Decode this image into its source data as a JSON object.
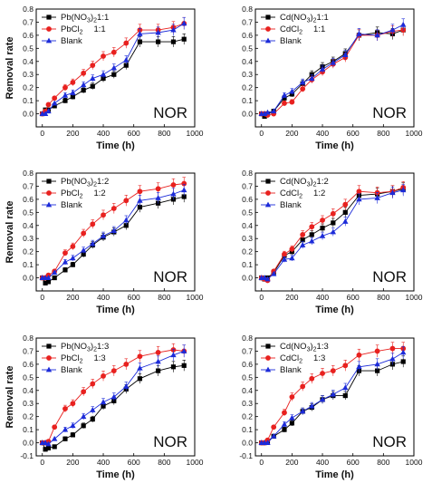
{
  "chart_data": [
    {
      "type": "line",
      "xlabel": "Time (h)",
      "ylabel": "Removal rate",
      "annotation": "NOR",
      "xlim": [
        -40,
        1000
      ],
      "ylim": [
        -0.1,
        0.8
      ],
      "xticks": [
        "0",
        "200",
        "400",
        "600",
        "800",
        "1000"
      ],
      "yticks": [
        "0.0",
        "0.1",
        "0.2",
        "0.3",
        "0.4",
        "0.5",
        "0.6",
        "0.7",
        "0.8"
      ],
      "legend_position": "top-left",
      "series": [
        {
          "name": "Pb(NO3)2",
          "ratio": "1:1",
          "marker": "square",
          "color": "#000000",
          "x": [
            0,
            20,
            40,
            80,
            150,
            200,
            270,
            330,
            400,
            470,
            550,
            640,
            760,
            860,
            930
          ],
          "y": [
            0.0,
            0.03,
            0.03,
            0.06,
            0.1,
            0.13,
            0.18,
            0.21,
            0.27,
            0.3,
            0.37,
            0.55,
            0.55,
            0.55,
            0.57
          ]
        },
        {
          "name": "PbCl2",
          "ratio": "1:1",
          "marker": "circle",
          "color": "#e8211f",
          "x": [
            0,
            20,
            40,
            80,
            150,
            200,
            270,
            330,
            400,
            470,
            550,
            640,
            760,
            860,
            930
          ],
          "y": [
            0.0,
            0.02,
            0.07,
            0.12,
            0.2,
            0.24,
            0.31,
            0.37,
            0.44,
            0.47,
            0.54,
            0.64,
            0.64,
            0.66,
            0.69
          ]
        },
        {
          "name": "Blank",
          "marker": "triangle",
          "color": "#1c2bd9",
          "x": [
            0,
            20,
            40,
            80,
            150,
            200,
            270,
            330,
            400,
            470,
            550,
            640,
            760,
            860,
            930
          ],
          "y": [
            0.0,
            0.0,
            0.02,
            0.08,
            0.14,
            0.16,
            0.22,
            0.27,
            0.3,
            0.35,
            0.41,
            0.61,
            0.62,
            0.64,
            0.69
          ]
        }
      ]
    },
    {
      "type": "line",
      "xlabel": "Time (h)",
      "ylabel": "",
      "annotation": "NOR",
      "xlim": [
        -40,
        1000
      ],
      "ylim": [
        -0.1,
        0.8
      ],
      "xticks": [
        "0",
        "200",
        "400",
        "600",
        "800",
        "1000"
      ],
      "yticks": [
        "0.0",
        "0.1",
        "0.2",
        "0.3",
        "0.4",
        "0.5",
        "0.6",
        "0.7",
        "0.8"
      ],
      "legend_position": "top-left",
      "series": [
        {
          "name": "Cd(NO3)2",
          "ratio": "1:1",
          "marker": "square",
          "color": "#000000",
          "x": [
            0,
            20,
            40,
            80,
            150,
            200,
            270,
            330,
            400,
            470,
            550,
            640,
            760,
            860,
            930
          ],
          "y": [
            0.0,
            -0.02,
            0.0,
            0.02,
            0.12,
            0.15,
            0.23,
            0.3,
            0.36,
            0.4,
            0.46,
            0.6,
            0.62,
            0.61,
            0.64
          ]
        },
        {
          "name": "CdCl2",
          "ratio": "1:1",
          "marker": "circle",
          "color": "#e8211f",
          "x": [
            0,
            20,
            40,
            80,
            150,
            200,
            270,
            330,
            400,
            470,
            550,
            640,
            760,
            860,
            930
          ],
          "y": [
            0.0,
            0.0,
            -0.01,
            0.0,
            0.08,
            0.09,
            0.19,
            0.26,
            0.32,
            0.38,
            0.43,
            0.6,
            0.6,
            0.63,
            0.64
          ]
        },
        {
          "name": "Blank",
          "marker": "triangle",
          "color": "#1c2bd9",
          "x": [
            0,
            20,
            40,
            80,
            150,
            200,
            270,
            330,
            400,
            470,
            550,
            640,
            760,
            860,
            930
          ],
          "y": [
            0.0,
            0.0,
            0.01,
            0.02,
            0.14,
            0.17,
            0.24,
            0.27,
            0.34,
            0.39,
            0.45,
            0.61,
            0.6,
            0.64,
            0.68
          ]
        }
      ]
    },
    {
      "type": "line",
      "xlabel": "Time (h)",
      "ylabel": "Removal rate",
      "annotation": "NOR",
      "xlim": [
        -40,
        1000
      ],
      "ylim": [
        -0.1,
        0.8
      ],
      "xticks": [
        "0",
        "200",
        "400",
        "600",
        "800",
        "1000"
      ],
      "yticks": [
        "0.0",
        "0.1",
        "0.2",
        "0.3",
        "0.4",
        "0.5",
        "0.6",
        "0.7",
        "0.8"
      ],
      "legend_position": "top-left",
      "series": [
        {
          "name": "Pb(NO3)2",
          "ratio": "1:2",
          "marker": "square",
          "color": "#000000",
          "x": [
            0,
            20,
            40,
            80,
            150,
            200,
            270,
            330,
            400,
            470,
            550,
            640,
            760,
            860,
            930
          ],
          "y": [
            0.0,
            -0.04,
            -0.03,
            0.0,
            0.06,
            0.1,
            0.18,
            0.25,
            0.31,
            0.35,
            0.4,
            0.54,
            0.57,
            0.6,
            0.62
          ]
        },
        {
          "name": "PbCl2",
          "ratio": "1:2",
          "marker": "circle",
          "color": "#e8211f",
          "x": [
            0,
            20,
            40,
            80,
            150,
            200,
            270,
            330,
            400,
            470,
            550,
            640,
            760,
            860,
            930
          ],
          "y": [
            0.0,
            0.0,
            0.02,
            0.05,
            0.19,
            0.24,
            0.34,
            0.41,
            0.48,
            0.53,
            0.59,
            0.66,
            0.68,
            0.71,
            0.72
          ]
        },
        {
          "name": "Blank",
          "marker": "triangle",
          "color": "#1c2bd9",
          "x": [
            0,
            20,
            40,
            80,
            150,
            200,
            270,
            330,
            400,
            470,
            550,
            640,
            760,
            860,
            930
          ],
          "y": [
            0.0,
            0.0,
            0.0,
            0.04,
            0.12,
            0.15,
            0.21,
            0.26,
            0.32,
            0.36,
            0.44,
            0.59,
            0.61,
            0.64,
            0.67
          ]
        }
      ]
    },
    {
      "type": "line",
      "xlabel": "Time (h)",
      "ylabel": "",
      "annotation": "NOR",
      "xlim": [
        -40,
        1000
      ],
      "ylim": [
        -0.1,
        0.8
      ],
      "xticks": [
        "0",
        "200",
        "400",
        "600",
        "800",
        "1000"
      ],
      "yticks": [
        "0.0",
        "0.1",
        "0.2",
        "0.3",
        "0.4",
        "0.5",
        "0.6",
        "0.7",
        "0.8"
      ],
      "legend_position": "top-left",
      "series": [
        {
          "name": "Cd(NO3)2",
          "ratio": "1:2",
          "marker": "square",
          "color": "#000000",
          "x": [
            0,
            20,
            40,
            80,
            150,
            200,
            270,
            330,
            400,
            470,
            550,
            640,
            760,
            860,
            930
          ],
          "y": [
            0.0,
            -0.01,
            0.0,
            0.04,
            0.17,
            0.2,
            0.29,
            0.33,
            0.38,
            0.42,
            0.5,
            0.63,
            0.64,
            0.66,
            0.68
          ]
        },
        {
          "name": "CdCl2",
          "ratio": "1:2",
          "marker": "circle",
          "color": "#e8211f",
          "x": [
            0,
            20,
            40,
            80,
            150,
            200,
            270,
            330,
            400,
            470,
            550,
            640,
            760,
            860,
            930
          ],
          "y": [
            0.0,
            -0.01,
            -0.02,
            0.05,
            0.18,
            0.22,
            0.33,
            0.39,
            0.44,
            0.49,
            0.56,
            0.66,
            0.65,
            0.66,
            0.69
          ]
        },
        {
          "name": "Blank",
          "marker": "triangle",
          "color": "#1c2bd9",
          "x": [
            0,
            20,
            40,
            80,
            150,
            200,
            270,
            330,
            400,
            470,
            550,
            640,
            760,
            860,
            930
          ],
          "y": [
            0.0,
            0.0,
            -0.01,
            0.03,
            0.14,
            0.15,
            0.25,
            0.28,
            0.32,
            0.35,
            0.43,
            0.6,
            0.61,
            0.65,
            0.67
          ]
        }
      ]
    },
    {
      "type": "line",
      "xlabel": "Time (h)",
      "ylabel": "Removal rate",
      "annotation": "NOR",
      "xlim": [
        -40,
        1000
      ],
      "ylim": [
        -0.1,
        0.8
      ],
      "xticks": [
        "0",
        "200",
        "400",
        "600",
        "800",
        "1000"
      ],
      "yticks": [
        "-0.1",
        "0.0",
        "0.1",
        "0.2",
        "0.3",
        "0.4",
        "0.5",
        "0.6",
        "0.7",
        "0.8"
      ],
      "legend_position": "top-left",
      "series": [
        {
          "name": "Pb(NO3)2",
          "ratio": "1:3",
          "marker": "square",
          "color": "#000000",
          "x": [
            0,
            20,
            40,
            80,
            150,
            200,
            270,
            330,
            400,
            470,
            550,
            640,
            760,
            860,
            930
          ],
          "y": [
            0.0,
            -0.05,
            -0.04,
            -0.03,
            0.03,
            0.06,
            0.13,
            0.18,
            0.28,
            0.32,
            0.41,
            0.49,
            0.55,
            0.58,
            0.59
          ]
        },
        {
          "name": "PbCl2",
          "ratio": "1:3",
          "marker": "circle",
          "color": "#e8211f",
          "x": [
            0,
            20,
            40,
            80,
            150,
            200,
            270,
            330,
            400,
            470,
            550,
            640,
            760,
            860,
            930
          ],
          "y": [
            0.0,
            0.0,
            0.01,
            0.12,
            0.26,
            0.3,
            0.39,
            0.45,
            0.51,
            0.55,
            0.6,
            0.66,
            0.69,
            0.71,
            0.7
          ]
        },
        {
          "name": "Blank",
          "marker": "triangle",
          "color": "#1c2bd9",
          "x": [
            0,
            20,
            40,
            80,
            150,
            200,
            270,
            330,
            400,
            470,
            550,
            640,
            760,
            860,
            930
          ],
          "y": [
            0.0,
            0.0,
            -0.01,
            0.03,
            0.1,
            0.13,
            0.2,
            0.25,
            0.31,
            0.35,
            0.43,
            0.57,
            0.62,
            0.67,
            0.7
          ]
        }
      ]
    },
    {
      "type": "line",
      "xlabel": "Time (h)",
      "ylabel": "",
      "annotation": "NOR",
      "xlim": [
        -40,
        1000
      ],
      "ylim": [
        -0.1,
        0.8
      ],
      "xticks": [
        "0",
        "200",
        "400",
        "600",
        "800",
        "1000"
      ],
      "yticks": [
        "-0.1",
        "0.0",
        "0.1",
        "0.2",
        "0.3",
        "0.4",
        "0.5",
        "0.6",
        "0.7",
        "0.8"
      ],
      "legend_position": "top-left",
      "series": [
        {
          "name": "Cd(NO3)2",
          "ratio": "1:3",
          "marker": "square",
          "color": "#000000",
          "x": [
            0,
            20,
            40,
            80,
            150,
            200,
            270,
            330,
            400,
            470,
            550,
            640,
            760,
            860,
            930
          ],
          "y": [
            0.0,
            0.0,
            0.01,
            0.05,
            0.1,
            0.15,
            0.24,
            0.27,
            0.33,
            0.36,
            0.36,
            0.55,
            0.55,
            0.6,
            0.62
          ]
        },
        {
          "name": "CdCl2",
          "ratio": "1:3",
          "marker": "circle",
          "color": "#e8211f",
          "x": [
            0,
            20,
            40,
            80,
            150,
            200,
            270,
            330,
            400,
            470,
            550,
            640,
            760,
            860,
            930
          ],
          "y": [
            0.0,
            0.0,
            0.02,
            0.12,
            0.23,
            0.35,
            0.43,
            0.49,
            0.53,
            0.55,
            0.59,
            0.67,
            0.7,
            0.72,
            0.72
          ]
        },
        {
          "name": "Blank",
          "marker": "triangle",
          "color": "#1c2bd9",
          "x": [
            0,
            20,
            40,
            80,
            150,
            200,
            270,
            330,
            400,
            470,
            550,
            640,
            760,
            860,
            930
          ],
          "y": [
            0.0,
            0.0,
            0.0,
            0.05,
            0.14,
            0.19,
            0.24,
            0.28,
            0.33,
            0.37,
            0.42,
            0.58,
            0.6,
            0.64,
            0.69
          ]
        }
      ]
    }
  ]
}
